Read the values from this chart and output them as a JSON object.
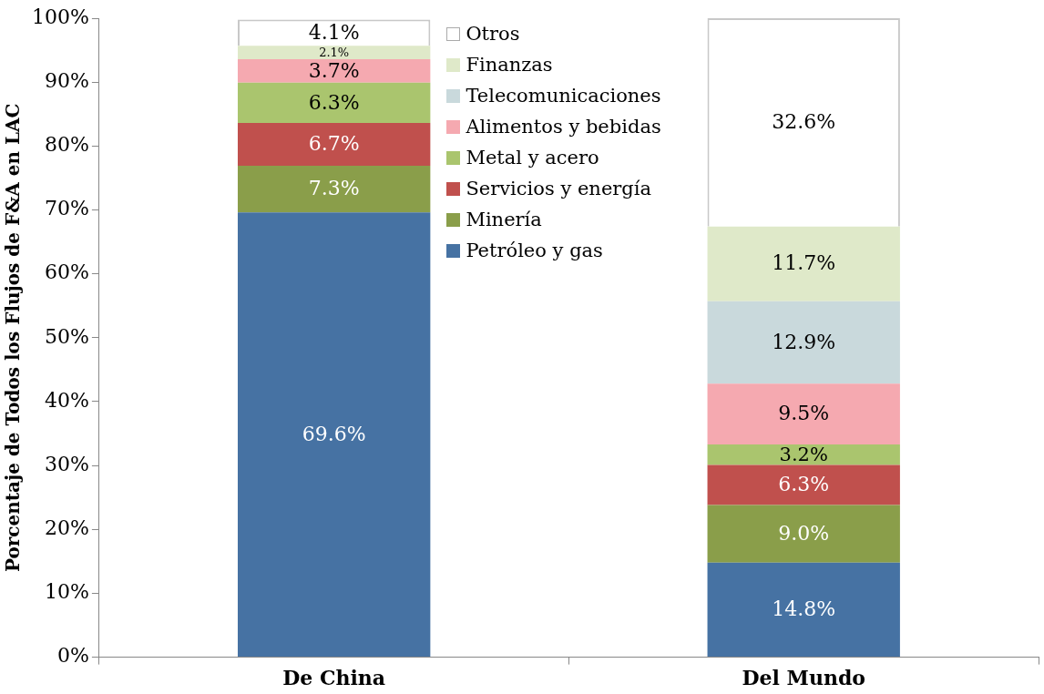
{
  "chart_data": {
    "type": "bar",
    "stacked": true,
    "ylabel": "Porcentaje de Todos los Flujos de F&A en LAC",
    "categories": [
      "De China",
      "Del Mundo"
    ],
    "ylim": [
      0,
      100
    ],
    "yticks": [
      {
        "value": 0,
        "label": "0%"
      },
      {
        "value": 10,
        "label": "10%"
      },
      {
        "value": 20,
        "label": "20%"
      },
      {
        "value": 30,
        "label": "30%"
      },
      {
        "value": 40,
        "label": "40%"
      },
      {
        "value": 50,
        "label": "50%"
      },
      {
        "value": 60,
        "label": "60%"
      },
      {
        "value": 70,
        "label": "70%"
      },
      {
        "value": 80,
        "label": "80%"
      },
      {
        "value": 90,
        "label": "90%"
      },
      {
        "value": 100,
        "label": "100%"
      }
    ],
    "grid": false,
    "legend": "top",
    "series": [
      {
        "name": "Petróleo y gas",
        "color": "#4672a3",
        "values": [
          69.6,
          14.8
        ],
        "value_labels": [
          "69.6%",
          "14.8%"
        ]
      },
      {
        "name": "Minería",
        "color": "#8a9e4a",
        "values": [
          7.3,
          9.0
        ],
        "value_labels": [
          "7.3%",
          "9.0%"
        ]
      },
      {
        "name": "Servicios y energía",
        "color": "#c0504d",
        "values": [
          6.7,
          6.3
        ],
        "value_labels": [
          "6.7%",
          "6.3%"
        ]
      },
      {
        "name": "Metal y acero",
        "color": "#aac56e",
        "values": [
          6.3,
          3.2
        ],
        "value_labels": [
          "6.3%",
          "3.2%"
        ]
      },
      {
        "name": "Alimentos y bebidas",
        "color": "#f5a9b0",
        "values": [
          3.7,
          9.5
        ],
        "value_labels": [
          "3.7%",
          "9.5%"
        ]
      },
      {
        "name": "Telecomunicaciones",
        "color": "#c9d9dc",
        "values": [
          null,
          12.9
        ],
        "value_labels": [
          null,
          "12.9%"
        ]
      },
      {
        "name": "Finanzas",
        "color": "#dfe9c9",
        "values": [
          2.1,
          11.7
        ],
        "value_labels": [
          "2.1%",
          "11.7%"
        ]
      },
      {
        "name": "Otros",
        "color": "#ffffff",
        "values": [
          4.1,
          32.6
        ],
        "value_labels": [
          "4.1%",
          "32.6%"
        ]
      }
    ]
  }
}
